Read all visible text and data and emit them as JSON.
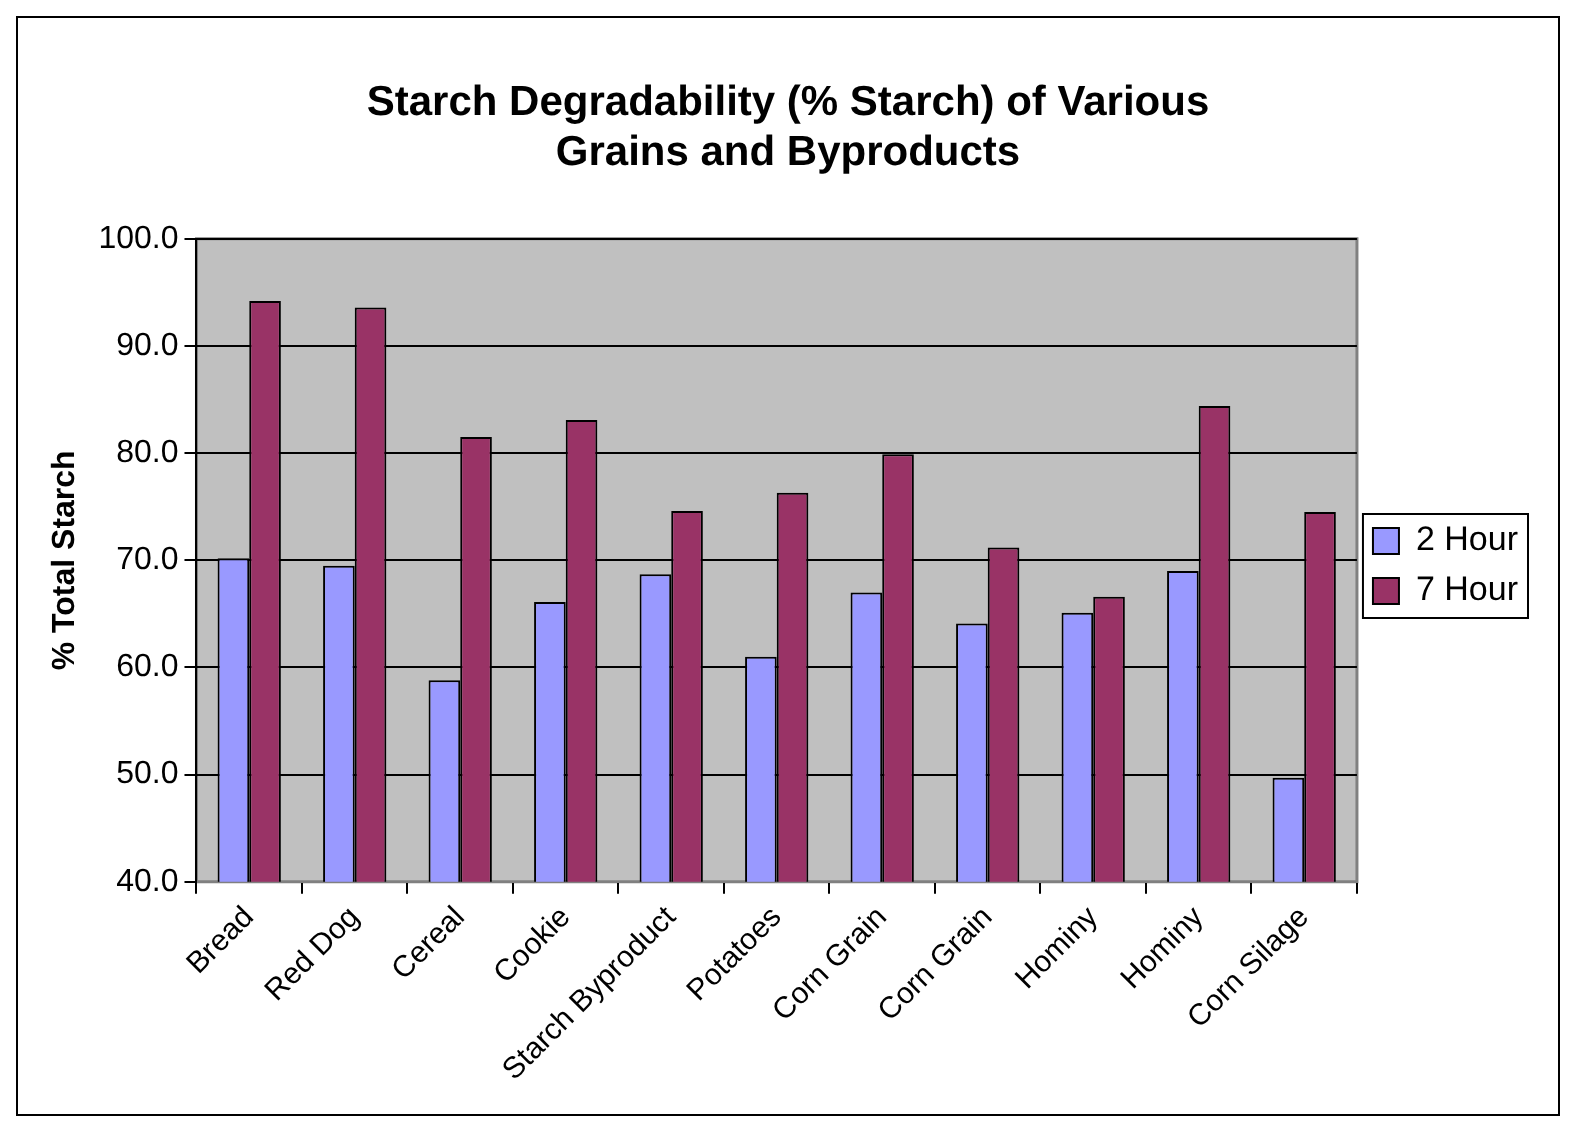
{
  "chart_data": {
    "type": "bar",
    "title": "Starch Degradability (% Starch) of Various Grains and Byproducts",
    "ylabel": "% Total Starch",
    "categories": [
      "Bread",
      "Red Dog",
      "Cereal",
      "Cookie",
      "Starch Byproduct",
      "Potatoes",
      "Corn Grain",
      "Corn Grain",
      "Hominy",
      "Hominy",
      "Corn Silage"
    ],
    "series": [
      {
        "name": "2 Hour",
        "color": "#9999ff",
        "values": [
          70.2,
          69.5,
          58.8,
          66.1,
          68.7,
          61.0,
          67.0,
          64.1,
          65.1,
          69.0,
          49.7
        ]
      },
      {
        "name": "7 Hour",
        "color": "#993366",
        "values": [
          94.2,
          93.6,
          81.5,
          83.1,
          74.6,
          76.3,
          79.9,
          71.2,
          66.6,
          84.4,
          74.5
        ]
      }
    ],
    "ylim": [
      40,
      100
    ],
    "yticks": [
      {
        "value": 40,
        "label": "40.0"
      },
      {
        "value": 50,
        "label": "50.0"
      },
      {
        "value": 60,
        "label": "60.0"
      },
      {
        "value": 70,
        "label": "70.0"
      },
      {
        "value": 80,
        "label": "80.0"
      },
      {
        "value": 90,
        "label": "90.0"
      },
      {
        "value": 100,
        "label": "100.0"
      }
    ],
    "grid": "y",
    "legend": "right"
  }
}
